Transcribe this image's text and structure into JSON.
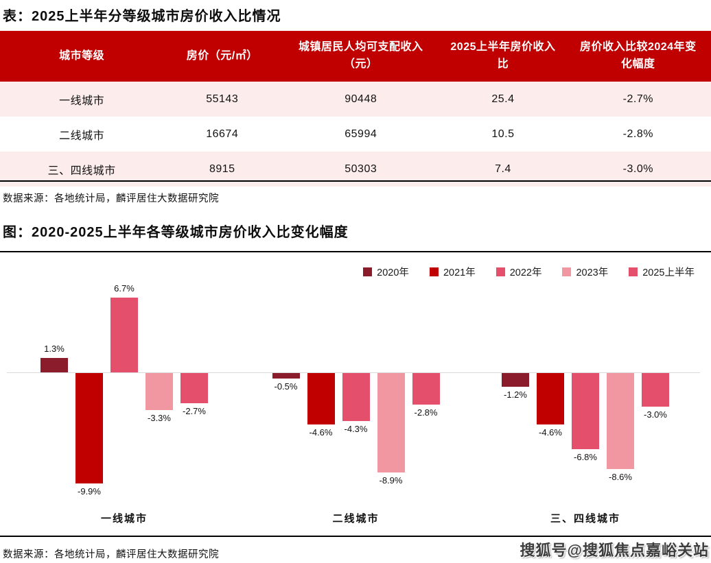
{
  "table_section": {
    "title": "表：2025上半年分等级城市房价收入比情况",
    "table": {
      "headers": [
        "城市等级",
        "房价（元/㎡）",
        "城镇居民人均可支配收入（元）",
        "2025上半年房价收入比",
        "房价收入比较2024年变化幅度"
      ],
      "rows": [
        [
          "一线城市",
          "55143",
          "90448",
          "25.4",
          "-2.7%"
        ],
        [
          "二线城市",
          "16674",
          "65994",
          "10.5",
          "-2.8%"
        ],
        [
          "三、四线城市",
          "8915",
          "50303",
          "7.4",
          "-3.0%"
        ]
      ]
    },
    "source": "数据来源：各地统计局，麟评居住大数据研究院"
  },
  "chart_section": {
    "title": "图：2020-2025上半年各等级城市房价收入比变化幅度",
    "source": "数据来源：各地统计局，麟评居住大数据研究院"
  },
  "watermark": "搜狐号@搜狐焦点嘉峪关站",
  "chart_data": {
    "type": "bar",
    "title": "图：2020-2025上半年各等级城市房价收入比变化幅度",
    "categories": [
      "一线城市",
      "二线城市",
      "三、四线城市"
    ],
    "series": [
      {
        "name": "2020年",
        "color": "#8B1C2C",
        "values": [
          1.3,
          -0.5,
          -1.2
        ]
      },
      {
        "name": "2021年",
        "color": "#C00000",
        "values": [
          -9.9,
          -4.6,
          -4.6
        ]
      },
      {
        "name": "2022年",
        "color": "#E4506B",
        "values": [
          6.7,
          -4.3,
          -6.8
        ]
      },
      {
        "name": "2023年",
        "color": "#F097A2",
        "values": [
          -3.3,
          -8.9,
          -8.6
        ]
      },
      {
        "name": "2025上半年",
        "color": "#E4506B",
        "values": [
          -2.7,
          -2.8,
          -3.0
        ]
      }
    ],
    "unit": "%",
    "ylim": [
      -10.5,
      7.5
    ],
    "grid": false,
    "zero_line": true,
    "data_labels": true,
    "legend_position": "top-right"
  },
  "colors": {
    "table_header_bg": "#C00000",
    "table_header_text": "#FFFFFF",
    "table_alt_row_bg": "#FDECEC",
    "zero_line": "#D9D9D9",
    "divider": "#000000"
  }
}
